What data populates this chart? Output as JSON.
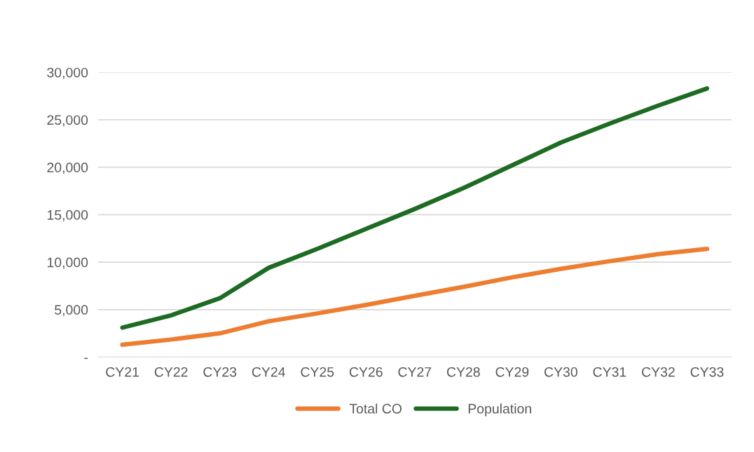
{
  "chart_data": {
    "type": "line",
    "categories": [
      "CY21",
      "CY22",
      "CY23",
      "CY24",
      "CY25",
      "CY26",
      "CY27",
      "CY28",
      "CY29",
      "CY30",
      "CY31",
      "CY32",
      "CY33"
    ],
    "series": [
      {
        "name": "Total CO",
        "color": "#ed7d31",
        "values": [
          1300,
          1850,
          2500,
          3770,
          4600,
          5500,
          6450,
          7400,
          8400,
          9300,
          10100,
          10850,
          11400
        ]
      },
      {
        "name": "Population",
        "color": "#1e6b24",
        "values": [
          3100,
          4400,
          6200,
          9400,
          11400,
          13500,
          15600,
          17800,
          20200,
          22600,
          24600,
          26500,
          28300
        ]
      }
    ],
    "ylim": [
      0,
      30000
    ],
    "yticks": [
      {
        "value": 0,
        "label": "-"
      },
      {
        "value": 5000,
        "label": "5,000"
      },
      {
        "value": 10000,
        "label": "10,000"
      },
      {
        "value": 15000,
        "label": "15,000"
      },
      {
        "value": 20000,
        "label": "20,000"
      },
      {
        "value": 25000,
        "label": "25,000"
      },
      {
        "value": 30000,
        "label": "30,000"
      }
    ],
    "grid": "y",
    "legend": "bottom",
    "marker": "none",
    "line_style": "solid"
  }
}
